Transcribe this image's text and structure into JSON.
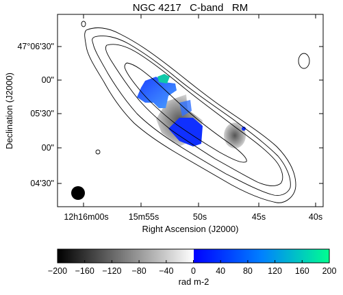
{
  "chart_data": {
    "type": "heatmap",
    "title": "NGC 4217   C-band   RM",
    "xlabel": "Right Ascension (J2000)",
    "ylabel": "Declination (J2000)",
    "x_ticks": [
      "12h16m00s",
      "15m55s",
      "50s",
      "45s",
      "40s"
    ],
    "y_ticks": [
      "47°06'30\"",
      "00\"",
      "05'30\"",
      "00\"",
      "04'30\""
    ],
    "colorbar": {
      "label": "rad m-2",
      "range": [
        -200,
        200
      ],
      "ticks": [
        "−200",
        "−160",
        "−120",
        "−80",
        "−40",
        "0",
        "40",
        "80",
        "120",
        "160",
        "200"
      ],
      "colors": {
        "negative_low": "#000000",
        "negative_high": "#ffffff",
        "zero_positive": "#0000ff",
        "positive_high": "#00ff80"
      }
    },
    "contours": {
      "levels_shown": 4,
      "color": "#000000"
    },
    "beam": {
      "shape": "filled-circle",
      "location": "bottom-left"
    },
    "grid": false
  }
}
